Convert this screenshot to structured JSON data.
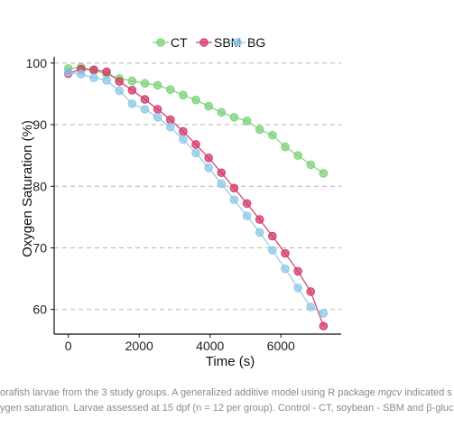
{
  "chart_data": {
    "type": "line",
    "xlabel": "Time (s)",
    "ylabel": "Oxygen Saturation (%)",
    "xlim": [
      -400,
      7700
    ],
    "ylim": [
      56,
      101
    ],
    "xticks": [
      0,
      2000,
      4000,
      6000
    ],
    "xtick_labels": [
      "0",
      "2000",
      "4000",
      "6000"
    ],
    "yticks": [
      60,
      70,
      80,
      90,
      100
    ],
    "ytick_labels": [
      "60",
      "70",
      "80",
      "90",
      "100"
    ],
    "grid": "horizontal dashed",
    "legend_position": "top",
    "series": [
      {
        "name": "CT",
        "color": "#7ed37a",
        "x": [
          0,
          360,
          720,
          1080,
          1440,
          1800,
          2160,
          2520,
          2880,
          3240,
          3600,
          3960,
          4320,
          4680,
          5040,
          5400,
          5760,
          6120,
          6480,
          6840,
          7200
        ],
        "y": [
          99.1,
          99.3,
          98.8,
          98.2,
          97.5,
          97.1,
          96.7,
          96.4,
          95.7,
          94.8,
          94.0,
          93.0,
          92.0,
          91.2,
          90.6,
          89.2,
          88.3,
          86.4,
          85.0,
          83.5,
          82.1
        ]
      },
      {
        "name": "SBM",
        "color": "#d33a6a",
        "x": [
          0,
          360,
          720,
          1080,
          1440,
          1800,
          2160,
          2520,
          2880,
          3240,
          3600,
          3960,
          4320,
          4680,
          5040,
          5400,
          5760,
          6120,
          6480,
          6840,
          7200
        ],
        "y": [
          98.3,
          99.0,
          98.9,
          98.6,
          97.0,
          95.6,
          94.1,
          92.5,
          90.8,
          88.9,
          86.8,
          84.6,
          82.2,
          79.7,
          77.2,
          74.6,
          71.9,
          69.1,
          66.2,
          62.9,
          57.3
        ]
      },
      {
        "name": "BG",
        "color": "#8ec8ea",
        "x": [
          0,
          360,
          720,
          1080,
          1440,
          1800,
          2160,
          2520,
          2880,
          3240,
          3600,
          3960,
          4320,
          4680,
          5040,
          5400,
          5760,
          6120,
          6480,
          6840,
          7200
        ],
        "y": [
          98.5,
          98.2,
          97.6,
          97.2,
          95.5,
          93.4,
          92.5,
          91.2,
          89.6,
          87.6,
          85.4,
          83.0,
          80.4,
          77.8,
          75.2,
          72.5,
          69.6,
          66.6,
          63.5,
          60.4,
          59.4
        ]
      }
    ]
  },
  "caption": {
    "line1_before": "orafish larvae from the 3 study groups. A generalized additive model using R package ",
    "line1_italic": "mgcv",
    "line1_after": " indicated s",
    "line2": "ygen saturation. Larvae assessed at 15 dpf (n = 12 per group). Control - CT, soybean - SBM and β-gluc"
  }
}
